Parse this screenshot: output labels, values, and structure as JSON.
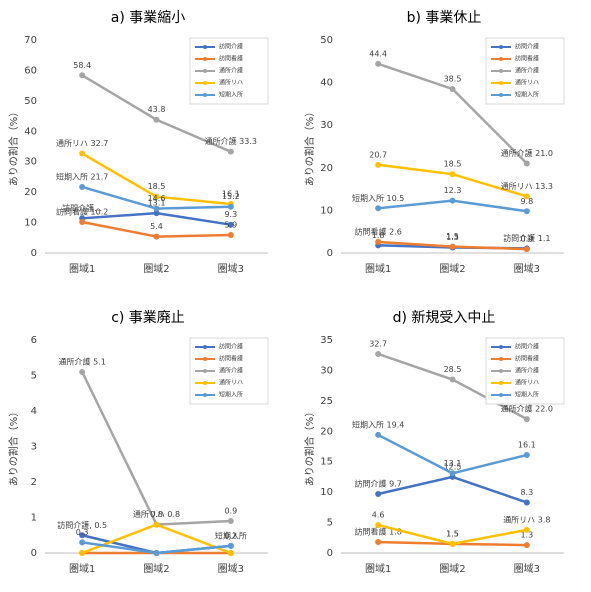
{
  "chart_data": [
    {
      "type": "line",
      "title": "a) 事業縮小",
      "y_label": "ありの割合（%）",
      "categories": [
        "圏域1",
        "圏域2",
        "圏域3"
      ],
      "ylim": [
        0,
        70
      ],
      "yticks": [
        0,
        10,
        20,
        30,
        40,
        50,
        60,
        70
      ],
      "grid": false,
      "legend": "upper right",
      "series": [
        {
          "name": "訪問介護",
          "color": "#4472c4",
          "values": [
            11.4,
            13.1,
            9.3
          ],
          "value_labels": [
            "訪問介護…",
            "13.1",
            "9.3"
          ]
        },
        {
          "name": "訪問看護",
          "color": "#ed7d31",
          "values": [
            10.2,
            5.4,
            5.9
          ],
          "value_labels": [
            "訪問看護 10.2",
            "5.4",
            "5.9"
          ]
        },
        {
          "name": "通所介護",
          "color": "#a5a5a5",
          "values": [
            58.4,
            43.8,
            33.3
          ],
          "value_labels": [
            "58.4",
            "43.8",
            "通所介護 33.3"
          ]
        },
        {
          "name": "通所リハ",
          "color": "#ffc000",
          "values": [
            32.7,
            18.5,
            16.1
          ],
          "value_labels": [
            "通所リハ 32.7",
            "18.5",
            "16.1"
          ]
        },
        {
          "name": "短期入所",
          "color": "#5b9bd5",
          "values": [
            21.7,
            14.6,
            15.2
          ],
          "value_labels": [
            "短期入所 21.7",
            "14.6",
            "15.2"
          ]
        }
      ]
    },
    {
      "type": "line",
      "title": "b) 事業休止",
      "y_label": "ありの割合（%）",
      "categories": [
        "圏域1",
        "圏域2",
        "圏域3"
      ],
      "ylim": [
        0,
        50
      ],
      "yticks": [
        0,
        10,
        20,
        30,
        40,
        50
      ],
      "grid": false,
      "legend": "upper right",
      "series": [
        {
          "name": "訪問介護",
          "color": "#4472c4",
          "values": [
            1.8,
            1.3,
            1.1
          ],
          "value_labels": [
            "1.8",
            "1.3",
            "訪問介護 1.1"
          ]
        },
        {
          "name": "訪問看護",
          "color": "#ed7d31",
          "values": [
            2.6,
            1.5,
            0.9
          ],
          "value_labels": [
            "訪問看護 2.6",
            "1.5",
            "0.9"
          ]
        },
        {
          "name": "通所介護",
          "color": "#a5a5a5",
          "values": [
            44.4,
            38.5,
            21.0
          ],
          "value_labels": [
            "44.4",
            "38.5",
            "通所介護 21.0"
          ]
        },
        {
          "name": "通所リハ",
          "color": "#ffc000",
          "values": [
            20.7,
            18.5,
            13.3
          ],
          "value_labels": [
            "20.7",
            "18.5",
            "通所リハ 13.3"
          ]
        },
        {
          "name": "短期入所",
          "color": "#5b9bd5",
          "values": [
            10.5,
            12.3,
            9.8
          ],
          "value_labels": [
            "短期入所 10.5",
            "12.3",
            "9.8"
          ]
        }
      ]
    },
    {
      "type": "line",
      "title": "c) 事業廃止",
      "y_label": "ありの割合（%）",
      "categories": [
        "圏域1",
        "圏域2",
        "圏域3"
      ],
      "ylim": [
        0,
        6
      ],
      "yticks": [
        0,
        1,
        2,
        3,
        4,
        5,
        6
      ],
      "grid": false,
      "legend": "upper right",
      "series": [
        {
          "name": "訪問介護",
          "color": "#4472c4",
          "values": [
            0.5,
            0,
            0.2
          ],
          "value_labels": [
            "訪問介護, 0.5",
            null,
            "0.2"
          ]
        },
        {
          "name": "訪問看護",
          "color": "#ed7d31",
          "values": [
            0,
            0,
            0
          ],
          "value_labels": [
            null,
            null,
            null
          ]
        },
        {
          "name": "通所介護",
          "color": "#a5a5a5",
          "values": [
            5.1,
            0.8,
            0.9
          ],
          "value_labels": [
            "通所介護 5.1",
            "通所リハ 0.8",
            "0.9"
          ]
        },
        {
          "name": "通所リハ",
          "color": "#ffc000",
          "values": [
            0,
            0.8,
            0
          ],
          "value_labels": [
            null,
            "0.8",
            null
          ]
        },
        {
          "name": "短期入所",
          "color": "#5b9bd5",
          "values": [
            0.3,
            0,
            0.2
          ],
          "value_labels": [
            "0.3",
            null,
            "短期入所"
          ]
        }
      ]
    },
    {
      "type": "line",
      "title": "d) 新規受入中止",
      "y_label": "ありの割合（%）",
      "categories": [
        "圏域1",
        "圏域2",
        "圏域3"
      ],
      "ylim": [
        0,
        35
      ],
      "yticks": [
        0,
        5,
        10,
        15,
        20,
        25,
        30,
        35
      ],
      "grid": false,
      "legend": "upper right",
      "series": [
        {
          "name": "訪問介護",
          "color": "#4472c4",
          "values": [
            9.7,
            12.5,
            8.3
          ],
          "value_labels": [
            "訪問介護 9.7",
            "12.5",
            "8.3"
          ]
        },
        {
          "name": "訪問看護",
          "color": "#ed7d31",
          "values": [
            1.8,
            1.5,
            1.3
          ],
          "value_labels": [
            "訪問看護 1.8",
            "1.5",
            "1.3"
          ]
        },
        {
          "name": "通所介護",
          "color": "#a5a5a5",
          "values": [
            32.7,
            28.5,
            22.0
          ],
          "value_labels": [
            "32.7",
            "28.5",
            "通所介護 22.0"
          ]
        },
        {
          "name": "通所リハ",
          "color": "#ffc000",
          "values": [
            4.6,
            1.5,
            3.8
          ],
          "value_labels": [
            "4.6",
            "1.5",
            "通所リハ 3.8"
          ]
        },
        {
          "name": "短期入所",
          "color": "#5b9bd5",
          "values": [
            19.4,
            13.1,
            16.1
          ],
          "value_labels": [
            "短期入所 19.4",
            "13.1",
            "16.1"
          ]
        }
      ]
    }
  ]
}
